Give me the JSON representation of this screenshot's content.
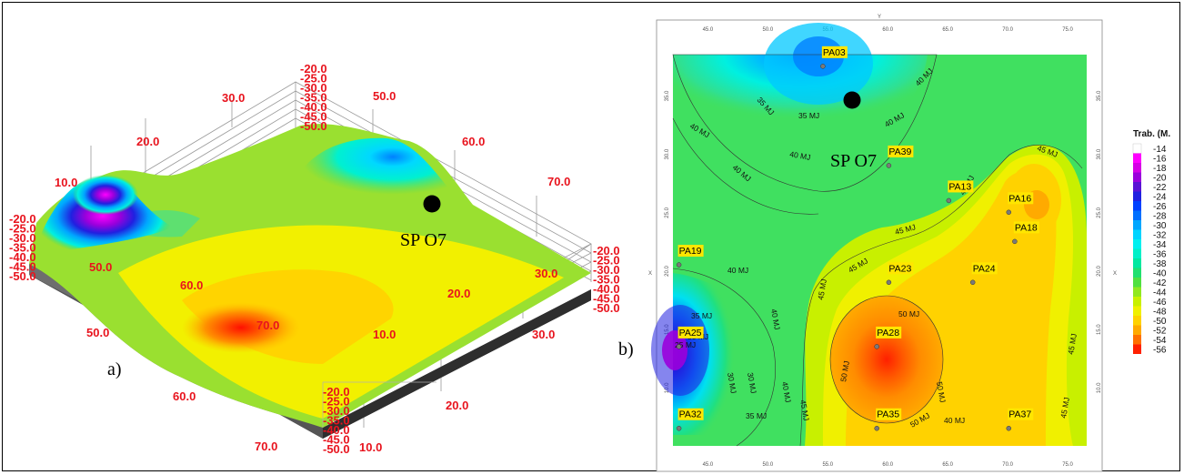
{
  "panel_a": {
    "label": "a)",
    "marker_label": "SP O7",
    "z_ticks_top": [
      "-20.0",
      "-25.0",
      "-30.0",
      "-35.0",
      "-40.0",
      "-45.0",
      "-50.0"
    ],
    "z_ticks_left": [
      "-20.0",
      "-25.0",
      "-30.0",
      "-35.0",
      "-40.0",
      "-45.0",
      "-50.0"
    ],
    "z_ticks_right": [
      "-20.0",
      "-25.0",
      "-30.0",
      "-35.0",
      "-40.0",
      "-45.0",
      "-50.0"
    ],
    "z_ticks_front": [
      "-20.0",
      "-25.0",
      "-30.0",
      "-35.0",
      "-40.0",
      "-45.0",
      "-50.0"
    ],
    "axis_labels": [
      "10.0",
      "20.0",
      "30.0",
      "50.0",
      "60.0",
      "70.0",
      "50.0",
      "60.0",
      "70.0",
      "30.0",
      "20.0",
      "10.0",
      "50.0",
      "60.0",
      "70.0",
      "30.0",
      "20.0",
      "10.0"
    ]
  },
  "panel_b": {
    "label": "b)",
    "marker_label": "SP O7",
    "axis_letter_x": "X",
    "axis_letter_y": "Y",
    "x_ticks": [
      "45.0",
      "50.0",
      "55.0",
      "60.0",
      "65.0",
      "70.0",
      "75.0"
    ],
    "y_ticks": [
      "10.0",
      "15.0",
      "20.0",
      "25.0",
      "30.0",
      "35.0"
    ],
    "points": [
      {
        "id": "PA03",
        "x": 54.5,
        "y": 38.0
      },
      {
        "id": "PA39",
        "x": 60.0,
        "y": 29.5
      },
      {
        "id": "PA13",
        "x": 65.0,
        "y": 26.5
      },
      {
        "id": "PA16",
        "x": 70.0,
        "y": 25.5
      },
      {
        "id": "PA18",
        "x": 70.5,
        "y": 23.0
      },
      {
        "id": "PA19",
        "x": 42.5,
        "y": 21.0
      },
      {
        "id": "PA23",
        "x": 60.0,
        "y": 19.5
      },
      {
        "id": "PA24",
        "x": 67.0,
        "y": 19.5
      },
      {
        "id": "PA25",
        "x": 42.5,
        "y": 14.0
      },
      {
        "id": "PA28",
        "x": 59.0,
        "y": 14.0
      },
      {
        "id": "PA32",
        "x": 42.5,
        "y": 7.0
      },
      {
        "id": "PA35",
        "x": 59.0,
        "y": 7.0
      },
      {
        "id": "PA37",
        "x": 70.0,
        "y": 7.0
      }
    ],
    "contour_labels": [
      "35 MJ",
      "40 MJ",
      "45 MJ",
      "50 MJ",
      "30 MJ",
      "25 MJ"
    ]
  },
  "legend": {
    "title": "Trab. (M.",
    "entries": [
      {
        "v": "-14",
        "c": "#ffffff"
      },
      {
        "v": "-16",
        "c": "#ff00ff"
      },
      {
        "v": "-18",
        "c": "#d600e6"
      },
      {
        "v": "-20",
        "c": "#9a00dc"
      },
      {
        "v": "-22",
        "c": "#5a12d4"
      },
      {
        "v": "-24",
        "c": "#2020e0"
      },
      {
        "v": "-26",
        "c": "#0040ff"
      },
      {
        "v": "-28",
        "c": "#0070ff"
      },
      {
        "v": "-30",
        "c": "#00a6ff"
      },
      {
        "v": "-32",
        "c": "#00d4ff"
      },
      {
        "v": "-34",
        "c": "#00f0f0"
      },
      {
        "v": "-36",
        "c": "#00f0c8"
      },
      {
        "v": "-38",
        "c": "#00e8a0"
      },
      {
        "v": "-40",
        "c": "#20e070"
      },
      {
        "v": "-42",
        "c": "#50e040"
      },
      {
        "v": "-44",
        "c": "#90e820"
      },
      {
        "v": "-46",
        "c": "#c8f000"
      },
      {
        "v": "-48",
        "c": "#f0f000"
      },
      {
        "v": "-50",
        "c": "#ffd200"
      },
      {
        "v": "-52",
        "c": "#ffaa00"
      },
      {
        "v": "-54",
        "c": "#ff7000"
      },
      {
        "v": "-56",
        "c": "#ff2000"
      }
    ]
  }
}
